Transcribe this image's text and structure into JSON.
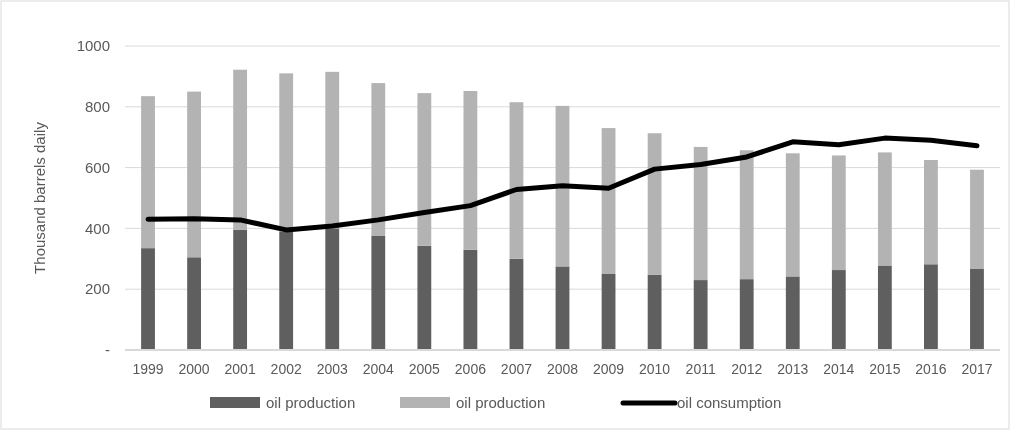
{
  "chart_data": {
    "type": "bar",
    "stacked": true,
    "ylabel": "Thousand barrels daily",
    "categories": [
      "1999",
      "2000",
      "2001",
      "2002",
      "2003",
      "2004",
      "2005",
      "2006",
      "2007",
      "2008",
      "2009",
      "2010",
      "2011",
      "2012",
      "2013",
      "2014",
      "2015",
      "2016",
      "2017"
    ],
    "series": [
      {
        "name": "oil production",
        "color": "#5f5f5f",
        "values": [
          335,
          305,
          395,
          390,
          400,
          375,
          343,
          330,
          300,
          275,
          250,
          248,
          230,
          233,
          242,
          263,
          278,
          282,
          268
        ]
      },
      {
        "name": "oil production",
        "color": "#b3b3b3",
        "values": [
          500,
          545,
          527,
          520,
          515,
          503,
          502,
          522,
          515,
          528,
          480,
          465,
          438,
          424,
          405,
          377,
          372,
          343,
          325
        ]
      },
      {
        "name": "oil consumption",
        "type": "line",
        "color": "#000000",
        "values": [
          430,
          432,
          428,
          395,
          408,
          428,
          452,
          475,
          528,
          540,
          532,
          595,
          610,
          635,
          685,
          675,
          697,
          690,
          672
        ]
      }
    ],
    "ylim": [
      0,
      1000
    ],
    "yticks": [
      {
        "value": 0,
        "label": "-"
      },
      200,
      400,
      600,
      800,
      1000
    ],
    "grid": "y",
    "legend": "bottom"
  }
}
